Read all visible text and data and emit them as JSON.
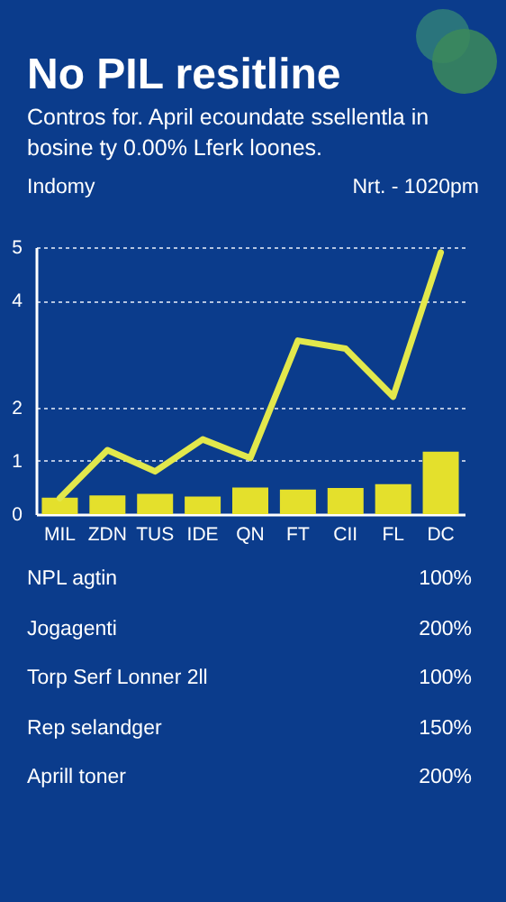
{
  "chart_data": {
    "type": "bar",
    "title": "No PIL resitline",
    "subtitle": "Contros for. April ecoundate ssellentla in bosine ty 0.00% Lferk loones.",
    "ylabel": "Indomy",
    "categories": [
      "MIL",
      "ZDN",
      "TUS",
      "IDE",
      "QN",
      "FT",
      "CII",
      "FL",
      "DC"
    ],
    "series": [
      {
        "color": "#e4e02c",
        "values": [
          0.31,
          0.35,
          0.38,
          0.33,
          0.5,
          0.46,
          0.49,
          0.56,
          1.17
        ]
      },
      {
        "type": "line",
        "color": "#e2e84c",
        "values": [
          0.3,
          1.2,
          0.8,
          1.4,
          1.05,
          3.25,
          3.1,
          2.2,
          4.9
        ]
      }
    ],
    "ylim": [
      0,
      5
    ],
    "yticks": [
      0,
      1,
      2,
      4,
      5
    ],
    "grid": "y",
    "annotations": [
      "Nrt. - 1020pm",
      "NPL agtin",
      "100%",
      "Jogagenti",
      "200%",
      "Torp Serf Lonner 2ll",
      "100%",
      "Rep selandger",
      "150%",
      "Aprill toner",
      "200%"
    ]
  }
}
